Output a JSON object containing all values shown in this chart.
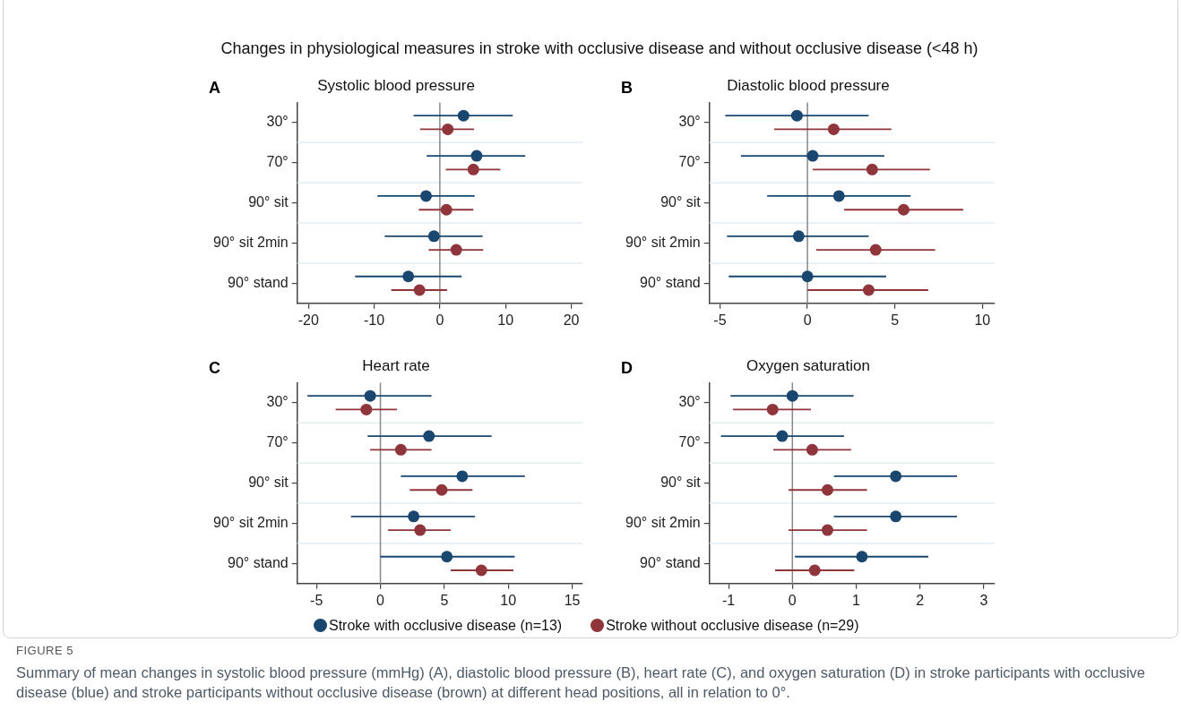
{
  "chart_data": [
    {
      "type": "other",
      "title": "Changes in physiological measures in stroke with occlusive disease and without occlusive disease (<48 h)",
      "annotations": [
        "FIGURE 5",
        "Summary of mean changes in systolic blood pressure (mmHg) (A), diastolic blood pressure (B), heart rate (C), and oxygen saturation (D) in stroke participants with occlusive disease (blue) and stroke participants without occlusive disease (brown) at different head positions, all in relation to 0°."
      ]
    },
    {
      "type": "scatter",
      "orientation": "horizontal",
      "title": "Systolic blood pressure",
      "annotations": [
        "A"
      ],
      "categories": [
        "30°",
        "70°",
        "90° sit",
        "90° sit 2min",
        "90° stand"
      ],
      "marker": "circle",
      "grid": "y",
      "xlim": [
        -21.7,
        21.7
      ],
      "xticks": [
        -20,
        -10,
        0,
        10,
        20
      ],
      "ref_lines": [
        {
          "axis": "x",
          "value": 0,
          "color": "#888888"
        }
      ],
      "series": [
        {
          "color": "#1a476f",
          "values": [
            3.6,
            5.6,
            -2.1,
            -0.9,
            -4.8
          ],
          "errors": [
            [
              -4.0,
              11.1
            ],
            [
              -2.0,
              13.0
            ],
            [
              -9.5,
              5.3
            ],
            [
              -8.4,
              6.5
            ],
            [
              -12.9,
              3.3
            ]
          ]
        },
        {
          "color": "#90353b",
          "values": [
            1.2,
            5.1,
            1.0,
            2.5,
            -3.1
          ],
          "errors": [
            [
              -3.0,
              5.2
            ],
            [
              0.9,
              9.2
            ],
            [
              -3.2,
              5.1
            ],
            [
              -1.7,
              6.6
            ],
            [
              -7.4,
              1.1
            ]
          ]
        }
      ]
    },
    {
      "type": "scatter",
      "orientation": "horizontal",
      "title": "Diastolic blood pressure",
      "annotations": [
        "B"
      ],
      "categories": [
        "30°",
        "70°",
        "90° sit",
        "90° sit 2min",
        "90° stand"
      ],
      "marker": "circle",
      "grid": "y",
      "xlim": [
        -5.6,
        10.7
      ],
      "xticks": [
        -5,
        0,
        5,
        10
      ],
      "ref_lines": [
        {
          "axis": "x",
          "value": 0,
          "color": "#888888"
        }
      ],
      "series": [
        {
          "color": "#1a476f",
          "values": [
            -0.6,
            0.3,
            1.8,
            -0.5,
            0.0
          ],
          "errors": [
            [
              -4.7,
              3.5
            ],
            [
              -3.8,
              4.4
            ],
            [
              -2.3,
              5.9
            ],
            [
              -4.6,
              3.5
            ],
            [
              -4.5,
              4.5
            ]
          ]
        },
        {
          "color": "#90353b",
          "values": [
            1.5,
            3.7,
            5.5,
            3.9,
            3.5
          ],
          "errors": [
            [
              -1.9,
              4.8
            ],
            [
              0.3,
              7.0
            ],
            [
              2.1,
              8.9
            ],
            [
              0.5,
              7.3
            ],
            [
              0.0,
              6.9
            ]
          ]
        }
      ]
    },
    {
      "type": "scatter",
      "orientation": "horizontal",
      "title": "Heart rate",
      "annotations": [
        "C"
      ],
      "categories": [
        "30°",
        "70°",
        "90° sit",
        "90° sit 2min",
        "90° stand"
      ],
      "marker": "circle",
      "grid": "y",
      "legend": "bottom",
      "xlim": [
        -6.5,
        15.8
      ],
      "xticks": [
        -5,
        0,
        5,
        10,
        15
      ],
      "ref_lines": [
        {
          "axis": "x",
          "value": 0,
          "color": "#888888"
        }
      ],
      "series": [
        {
          "name": "Stroke with occlusive disease (n=13)",
          "color": "#1a476f",
          "values": [
            -0.8,
            3.8,
            6.4,
            2.6,
            5.2
          ],
          "errors": [
            [
              -5.7,
              4.0
            ],
            [
              -1.0,
              8.7
            ],
            [
              1.6,
              11.3
            ],
            [
              -2.3,
              7.4
            ],
            [
              0.0,
              10.5
            ]
          ]
        },
        {
          "name": "Stroke without occlusive disease (n=29)",
          "color": "#90353b",
          "values": [
            -1.1,
            1.6,
            4.8,
            3.1,
            7.9
          ],
          "errors": [
            [
              -3.5,
              1.3
            ],
            [
              -0.8,
              4.0
            ],
            [
              2.3,
              7.2
            ],
            [
              0.6,
              5.5
            ],
            [
              5.5,
              10.4
            ]
          ]
        }
      ]
    },
    {
      "type": "scatter",
      "orientation": "horizontal",
      "title": "Oxygen saturation",
      "annotations": [
        "D"
      ],
      "categories": [
        "30°",
        "70°",
        "90° sit",
        "90° sit 2min",
        "90° stand"
      ],
      "marker": "circle",
      "grid": "y",
      "xlim": [
        -1.3,
        3.17
      ],
      "xticks": [
        -1,
        0,
        1,
        2,
        3
      ],
      "ref_lines": [
        {
          "axis": "x",
          "value": 0,
          "color": "#888888"
        }
      ],
      "series": [
        {
          "color": "#1a476f",
          "values": [
            0.0,
            -0.16,
            1.62,
            1.62,
            1.09
          ],
          "errors": [
            [
              -0.97,
              0.96
            ],
            [
              -1.12,
              0.81
            ],
            [
              0.65,
              2.58
            ],
            [
              0.65,
              2.58
            ],
            [
              0.04,
              2.13
            ]
          ]
        },
        {
          "color": "#90353b",
          "values": [
            -0.31,
            0.31,
            0.55,
            0.55,
            0.35
          ],
          "errors": [
            [
              -0.93,
              0.29
            ],
            [
              -0.3,
              0.92
            ],
            [
              -0.06,
              1.17
            ],
            [
              -0.06,
              1.17
            ],
            [
              -0.27,
              0.97
            ]
          ]
        }
      ]
    }
  ]
}
